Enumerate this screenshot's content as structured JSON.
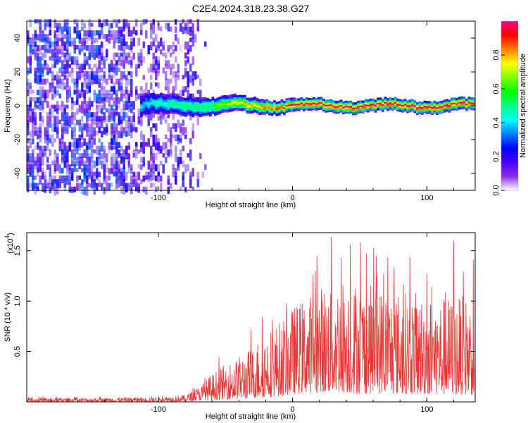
{
  "figure": {
    "title": "C2E4.2024.318.23.38.G27"
  },
  "chart_data": [
    {
      "type": "heatmap",
      "title": "C2E4.2024.318.23.38.G27",
      "xlabel": "Height of straight line (km)",
      "ylabel": "Frequency (Hz)",
      "xlim": [
        -198,
        136
      ],
      "ylim": [
        -50,
        50
      ],
      "xticks": [
        -100,
        0,
        100
      ],
      "xtick_labels": [
        "-100",
        "0",
        "100"
      ],
      "yticks": [
        -40,
        -20,
        0,
        20,
        40
      ],
      "ytick_labels": [
        "-40",
        "-20",
        "0",
        "20",
        "40"
      ],
      "colorbar": {
        "label": "Normalized spectral amplitude",
        "range": [
          0,
          1
        ],
        "ticks": [
          0.0,
          0.2,
          0.4,
          0.6,
          0.8
        ],
        "tick_labels": [
          "0.0",
          "0.2",
          "0.4",
          "0.6",
          "0.8"
        ],
        "colormap": [
          "#ffffff",
          "#8a2be2",
          "#4b00ff",
          "#0000ff",
          "#0080ff",
          "#00ffff",
          "#00ff80",
          "#00ff00",
          "#80ff00",
          "#ffff00",
          "#ff8000",
          "#ff0000",
          "#ff0080"
        ]
      },
      "description_values": {
        "noise_region_x": [
          -198,
          -75
        ],
        "signal_band_center_hz": 0,
        "signal_band_halfwidth_hz": 3,
        "signal_appears_from_km": -115
      }
    },
    {
      "type": "line",
      "xlabel": "Height of straight line (km)",
      "ylabel": "SNR (10 * v/v)",
      "y_multiplier_label": "(x10",
      "y_multiplier_exp": "4",
      "xlim": [
        -198,
        136
      ],
      "ylim": [
        0,
        1.68
      ],
      "xticks": [
        -100,
        0,
        100
      ],
      "xtick_labels": [
        "-100",
        "0",
        "100"
      ],
      "yticks": [
        0.5,
        1.0,
        1.5
      ],
      "ytick_labels": [
        "0.5",
        "1.0",
        "1.5"
      ],
      "line_color": "#ee3333",
      "envelope": {
        "x": [
          -198,
          -150,
          -100,
          -80,
          -70,
          -60,
          -50,
          -40,
          -30,
          -20,
          -10,
          0,
          10,
          20,
          30,
          40,
          50,
          60,
          70,
          80,
          90,
          100,
          110,
          120,
          130,
          136
        ],
        "low": [
          0.01,
          0.01,
          0.01,
          0.02,
          0.04,
          0.06,
          0.08,
          0.1,
          0.12,
          0.15,
          0.18,
          0.25,
          0.3,
          0.3,
          0.3,
          0.3,
          0.28,
          0.28,
          0.28,
          0.26,
          0.26,
          0.25,
          0.25,
          0.24,
          0.24,
          0.24
        ],
        "high": [
          0.04,
          0.04,
          0.05,
          0.07,
          0.15,
          0.28,
          0.38,
          0.45,
          0.55,
          0.72,
          0.8,
          0.95,
          1.05,
          1.15,
          1.25,
          1.25,
          1.2,
          1.15,
          1.15,
          1.1,
          1.1,
          1.05,
          1.05,
          1.05,
          1.05,
          1.05
        ]
      },
      "spikes": [
        {
          "x": 29,
          "y": 1.64
        },
        {
          "x": 43,
          "y": 1.56
        },
        {
          "x": 120,
          "y": 1.6
        },
        {
          "x": 100,
          "y": 1.28
        },
        {
          "x": 17,
          "y": 1.3
        }
      ]
    }
  ]
}
